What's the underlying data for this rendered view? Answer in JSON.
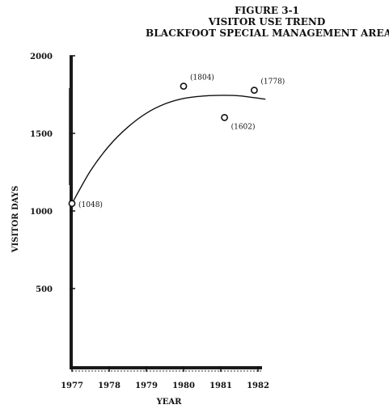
{
  "figure_label": "FIGURE 3-1",
  "title": "VISITOR USE TREND",
  "subtitle": "BLACKFOOT SPECIAL MANAGEMENT AREA",
  "chart_data": {
    "type": "scatter",
    "title": "VISITOR USE TREND",
    "xlabel": "YEAR",
    "ylabel": "VISITOR DAYS",
    "xlim": [
      1977,
      1982
    ],
    "ylim": [
      0,
      2000
    ],
    "x_ticks": [
      "1977",
      "1978",
      "1979",
      "1980",
      "1981",
      "1982"
    ],
    "y_ticks": [
      "500",
      "1000",
      "1500",
      "2000"
    ],
    "grid": false,
    "points": [
      {
        "x": 1977,
        "y": 1048,
        "label": "(1048)"
      },
      {
        "x": 1980,
        "y": 1804,
        "label": "(1804)"
      },
      {
        "x": 1981.1,
        "y": 1602,
        "label": "(1602)"
      },
      {
        "x": 1981.9,
        "y": 1778,
        "label": "(1778)"
      }
    ],
    "trend_line": {
      "x": [
        1977,
        1977.5,
        1978,
        1978.5,
        1979,
        1979.5,
        1980,
        1980.5,
        1981,
        1981.5,
        1982.2
      ],
      "y": [
        1048,
        1260,
        1420,
        1540,
        1630,
        1690,
        1725,
        1740,
        1745,
        1742,
        1720
      ]
    }
  }
}
